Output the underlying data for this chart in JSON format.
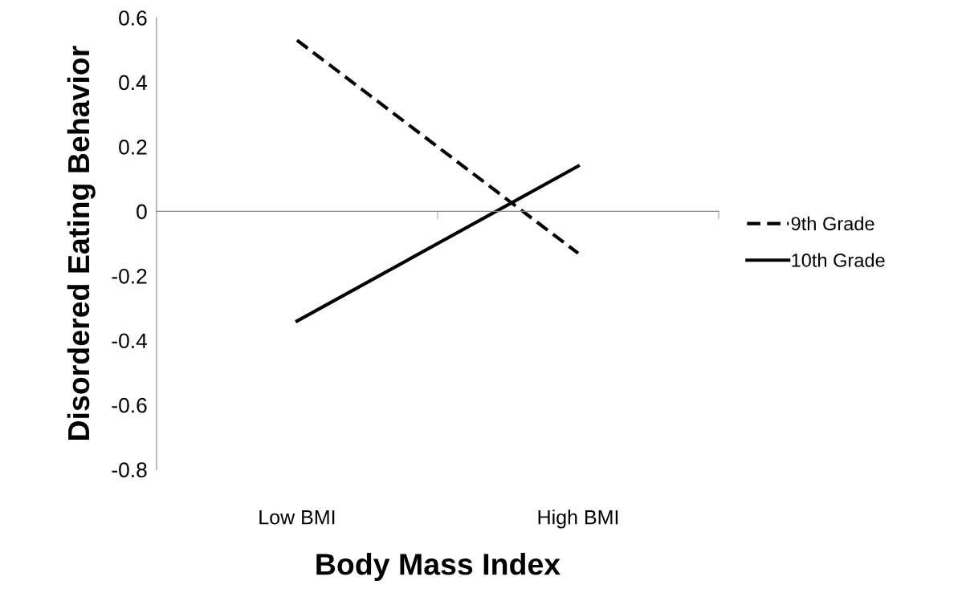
{
  "chart_data": {
    "type": "line",
    "xlabel": "Body Mass Index",
    "ylabel": "Disordered Eating Behavior",
    "categories": [
      "Low BMI",
      "High BMI"
    ],
    "series": [
      {
        "name": "9th Grade",
        "color": "#000000",
        "line_style": "dashed",
        "values": [
          0.53,
          -0.13
        ]
      },
      {
        "name": "10th Grade",
        "color": "#000000",
        "line_style": "solid",
        "values": [
          -0.34,
          0.14
        ]
      }
    ],
    "ylim": [
      -0.8,
      0.6
    ],
    "yticks": [
      -0.8,
      -0.6,
      -0.4,
      -0.2,
      0,
      0.2,
      0.4,
      0.6
    ],
    "legend": "right",
    "marker": "none"
  }
}
